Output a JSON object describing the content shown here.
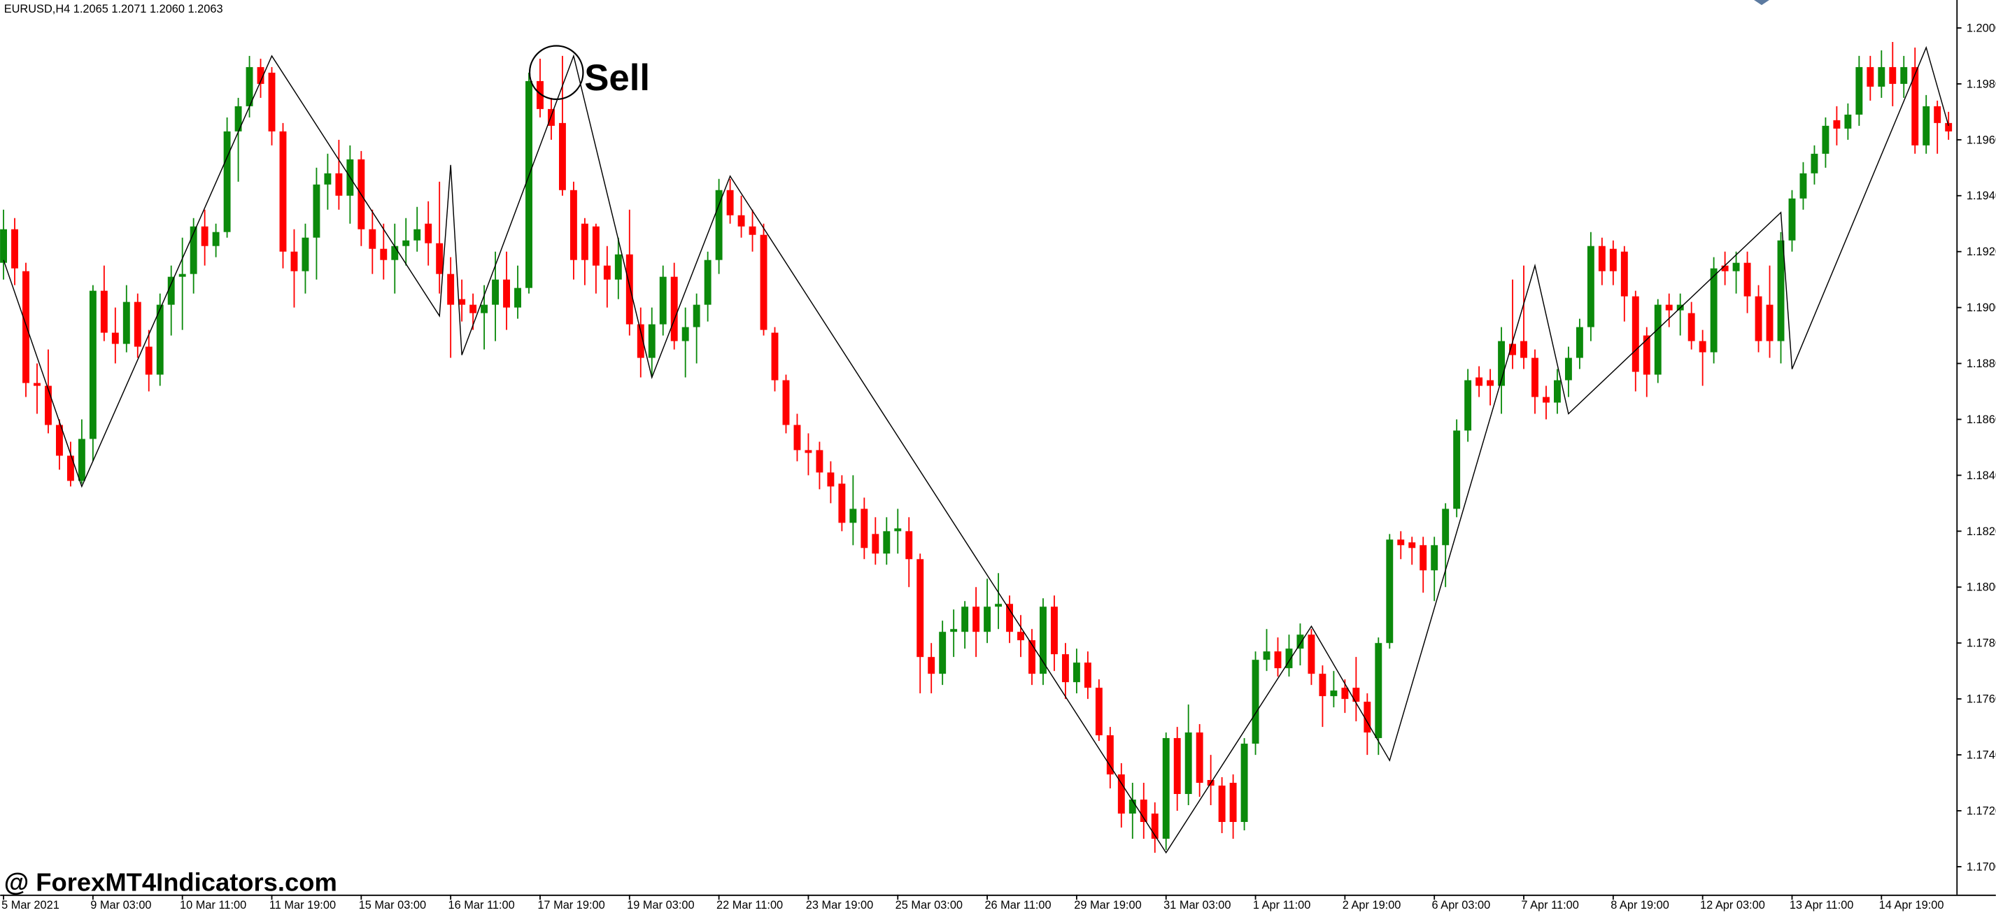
{
  "chart_data": {
    "type": "candlestick",
    "title": "EURUSD,H4  1.2065 1.2071 1.2060 1.2063",
    "annotation": "Sell",
    "watermark": "@ ForexMT4Indicators.com",
    "up_color": "#0b8a0b",
    "down_color": "#ff0000",
    "ylim": [
      1.169,
      1.201
    ],
    "yticks": [
      {
        "value": 1.17,
        "label": "1.1700"
      },
      {
        "value": 1.172,
        "label": "1.1720"
      },
      {
        "value": 1.174,
        "label": "1.1740"
      },
      {
        "value": 1.176,
        "label": "1.1760"
      },
      {
        "value": 1.178,
        "label": "1.1780"
      },
      {
        "value": 1.18,
        "label": "1.1800"
      },
      {
        "value": 1.182,
        "label": "1.1820"
      },
      {
        "value": 1.184,
        "label": "1.1840"
      },
      {
        "value": 1.186,
        "label": "1.1860"
      },
      {
        "value": 1.188,
        "label": "1.1880"
      },
      {
        "value": 1.19,
        "label": "1.1900"
      },
      {
        "value": 1.192,
        "label": "1.1920"
      },
      {
        "value": 1.194,
        "label": "1.1940"
      },
      {
        "value": 1.196,
        "label": "1.1960"
      },
      {
        "value": 1.198,
        "label": "1.1980"
      },
      {
        "value": 1.2,
        "label": "1.2000"
      }
    ],
    "categories": [
      "5 Mar 2021",
      null,
      null,
      null,
      null,
      null,
      null,
      null,
      "9 Mar 03:00",
      null,
      null,
      null,
      null,
      null,
      null,
      null,
      "10 Mar 11:00",
      null,
      null,
      null,
      null,
      null,
      null,
      null,
      "11 Mar 19:00",
      null,
      null,
      null,
      null,
      null,
      null,
      null,
      "15 Mar 03:00",
      null,
      null,
      null,
      null,
      null,
      null,
      null,
      "16 Mar 11:00",
      null,
      null,
      null,
      null,
      null,
      null,
      null,
      "17 Mar 19:00",
      null,
      null,
      null,
      null,
      null,
      null,
      null,
      "19 Mar 03:00",
      null,
      null,
      null,
      null,
      null,
      null,
      null,
      "22 Mar 11:00",
      null,
      null,
      null,
      null,
      null,
      null,
      null,
      "23 Mar 19:00",
      null,
      null,
      null,
      null,
      null,
      null,
      null,
      "25 Mar 03:00",
      null,
      null,
      null,
      null,
      null,
      null,
      null,
      "26 Mar 11:00",
      null,
      null,
      null,
      null,
      null,
      null,
      null,
      "29 Mar 19:00",
      null,
      null,
      null,
      null,
      null,
      null,
      null,
      "31 Mar 03:00",
      null,
      null,
      null,
      null,
      null,
      null,
      null,
      "1 Apr 11:00",
      null,
      null,
      null,
      null,
      null,
      null,
      null,
      "2 Apr 19:00",
      null,
      null,
      null,
      null,
      null,
      null,
      null,
      "6 Apr 03:00",
      null,
      null,
      null,
      null,
      null,
      null,
      null,
      "7 Apr 11:00",
      null,
      null,
      null,
      null,
      null,
      null,
      null,
      "8 Apr 19:00",
      null,
      null,
      null,
      null,
      null,
      null,
      null,
      "12 Apr 03:00",
      null,
      null,
      null,
      null,
      null,
      null,
      null,
      "13 Apr 11:00",
      null,
      null,
      null,
      null,
      null,
      null,
      null,
      "14 Apr 19:00",
      null,
      null,
      null,
      null,
      null,
      null
    ],
    "open": [
      1.1916,
      1.1928,
      1.1913,
      1.1873,
      1.1872,
      1.1858,
      1.1847,
      1.1838,
      1.1853,
      1.1906,
      1.1891,
      1.1887,
      1.1902,
      1.1886,
      1.1876,
      1.1901,
      1.1911,
      1.1912,
      1.1929,
      1.1922,
      1.1927,
      1.1963,
      1.1972,
      1.1986,
      1.1984,
      1.1963,
      1.192,
      1.1913,
      1.1925,
      1.1944,
      1.1948,
      1.194,
      1.1953,
      1.1928,
      1.1921,
      1.1917,
      1.1922,
      1.1924,
      1.193,
      1.1923,
      1.1912,
      1.1903,
      1.1901,
      1.1898,
      1.1901,
      1.191,
      1.19,
      1.1907,
      1.1981,
      1.1971,
      1.1966,
      1.1942,
      1.193,
      1.1929,
      1.1915,
      1.191,
      1.1919,
      1.1894,
      1.1882,
      1.1894,
      1.1911,
      1.1888,
      1.1893,
      1.1901,
      1.1917,
      1.1942,
      1.1933,
      1.1929,
      1.1926,
      1.1891,
      1.1874,
      1.1858,
      1.1849,
      1.1849,
      1.1841,
      1.1837,
      1.1823,
      1.1828,
      1.1819,
      1.1812,
      1.182,
      1.182,
      1.181,
      1.1775,
      1.1769,
      1.1784,
      1.1784,
      1.1793,
      1.1784,
      1.1793,
      1.1794,
      1.1784,
      1.1781,
      1.1769,
      1.1793,
      1.1776,
      1.1766,
      1.1773,
      1.1764,
      1.1747,
      1.1733,
      1.1719,
      1.1724,
      1.1719,
      1.171,
      1.1746,
      1.1726,
      1.1748,
      1.1731,
      1.1729,
      1.173,
      1.1716,
      1.1744,
      1.1774,
      1.1777,
      1.1771,
      1.1778,
      1.1783,
      1.1769,
      1.1761,
      1.1764,
      1.1764,
      1.1759,
      1.1746,
      1.178,
      1.1817,
      1.1816,
      1.1815,
      1.1806,
      1.1815,
      1.1828,
      1.1856,
      1.1875,
      1.1874,
      1.1872,
      1.1887,
      1.1888,
      1.1882,
      1.1868,
      1.1866,
      1.1874,
      1.1882,
      1.1893,
      1.1922,
      1.1921,
      1.192,
      1.1904,
      1.189,
      1.1876,
      1.1901,
      1.1899,
      1.1898,
      1.1888,
      1.1884,
      1.1915,
      1.1913,
      1.1916,
      1.1904,
      1.1901,
      1.1888,
      1.1924,
      1.1939,
      1.1948,
      1.1955,
      1.1967,
      1.1964,
      1.1969,
      1.1986,
      1.1979,
      1.1986,
      1.198,
      1.1986,
      1.1958,
      1.1972,
      1.1966
    ],
    "high": [
      1.1935,
      1.1932,
      1.1916,
      1.188,
      1.1885,
      1.186,
      1.1852,
      1.186,
      1.1908,
      1.1915,
      1.19,
      1.1908,
      1.1905,
      1.1892,
      1.1905,
      1.1915,
      1.1925,
      1.1932,
      1.1935,
      1.193,
      1.1968,
      1.1975,
      1.199,
      1.1989,
      1.1986,
      1.1966,
      1.1928,
      1.193,
      1.195,
      1.1955,
      1.196,
      1.1958,
      1.1956,
      1.1935,
      1.193,
      1.193,
      1.1932,
      1.1936,
      1.1938,
      1.1945,
      1.1918,
      1.191,
      1.1905,
      1.1908,
      1.192,
      1.192,
      1.1915,
      1.1984,
      1.1989,
      1.1975,
      1.199,
      1.1945,
      1.1932,
      1.193,
      1.1922,
      1.1925,
      1.1935,
      1.19,
      1.19,
      1.1915,
      1.1916,
      1.19,
      1.1905,
      1.192,
      1.1946,
      1.1946,
      1.194,
      1.1935,
      1.193,
      1.1893,
      1.1876,
      1.1862,
      1.1855,
      1.1852,
      1.1845,
      1.184,
      1.184,
      1.1832,
      1.1825,
      1.1825,
      1.1828,
      1.1825,
      1.1812,
      1.178,
      1.1788,
      1.1792,
      1.1795,
      1.18,
      1.1803,
      1.1805,
      1.1797,
      1.179,
      1.1785,
      1.1796,
      1.1797,
      1.178,
      1.1778,
      1.1777,
      1.1767,
      1.175,
      1.1737,
      1.173,
      1.173,
      1.1723,
      1.1748,
      1.175,
      1.1758,
      1.1751,
      1.174,
      1.1732,
      1.1733,
      1.1746,
      1.1777,
      1.1785,
      1.1782,
      1.1783,
      1.1787,
      1.1785,
      1.1772,
      1.177,
      1.1767,
      1.1775,
      1.1762,
      1.1782,
      1.1819,
      1.182,
      1.1818,
      1.1818,
      1.1818,
      1.183,
      1.186,
      1.1878,
      1.1879,
      1.1878,
      1.1893,
      1.191,
      1.1915,
      1.1885,
      1.1872,
      1.1878,
      1.1886,
      1.1896,
      1.1927,
      1.1925,
      1.1924,
      1.1922,
      1.1906,
      1.1893,
      1.1903,
      1.1905,
      1.1905,
      1.1902,
      1.1892,
      1.1918,
      1.192,
      1.192,
      1.192,
      1.1908,
      1.1915,
      1.1927,
      1.1942,
      1.1952,
      1.1958,
      1.1968,
      1.1972,
      1.1973,
      1.199,
      1.199,
      1.1992,
      1.1995,
      1.199,
      1.1993,
      1.1976,
      1.1974,
      1.197
    ],
    "low": [
      1.191,
      1.1908,
      1.1868,
      1.1862,
      1.1855,
      1.1842,
      1.1836,
      1.1837,
      1.1845,
      1.1888,
      1.188,
      1.1884,
      1.1882,
      1.187,
      1.1872,
      1.189,
      1.1892,
      1.1905,
      1.1915,
      1.1918,
      1.1925,
      1.1945,
      1.1968,
      1.1975,
      1.1958,
      1.1914,
      1.19,
      1.1905,
      1.191,
      1.1935,
      1.1935,
      1.193,
      1.1922,
      1.1912,
      1.191,
      1.1905,
      1.1915,
      1.192,
      1.1915,
      1.1905,
      1.1882,
      1.1895,
      1.1892,
      1.1885,
      1.1888,
      1.1892,
      1.1896,
      1.1905,
      1.1968,
      1.196,
      1.194,
      1.191,
      1.1908,
      1.1905,
      1.19,
      1.1903,
      1.189,
      1.1875,
      1.1875,
      1.189,
      1.1885,
      1.1875,
      1.188,
      1.1895,
      1.1912,
      1.193,
      1.1925,
      1.192,
      1.189,
      1.187,
      1.1855,
      1.1845,
      1.184,
      1.1835,
      1.183,
      1.182,
      1.1815,
      1.181,
      1.1808,
      1.1808,
      1.1812,
      1.18,
      1.1762,
      1.1762,
      1.1765,
      1.1775,
      1.1778,
      1.1775,
      1.178,
      1.1785,
      1.178,
      1.1775,
      1.1765,
      1.1765,
      1.177,
      1.176,
      1.1762,
      1.176,
      1.1745,
      1.1728,
      1.1714,
      1.171,
      1.171,
      1.1705,
      1.1706,
      1.172,
      1.1722,
      1.1725,
      1.1722,
      1.1712,
      1.171,
      1.1713,
      1.174,
      1.177,
      1.1768,
      1.1768,
      1.1772,
      1.1765,
      1.175,
      1.1757,
      1.1755,
      1.1752,
      1.174,
      1.174,
      1.1778,
      1.181,
      1.1808,
      1.1798,
      1.1795,
      1.18,
      1.1825,
      1.1852,
      1.1868,
      1.1865,
      1.1862,
      1.1878,
      1.1878,
      1.1862,
      1.186,
      1.1862,
      1.1868,
      1.1878,
      1.1888,
      1.1908,
      1.1908,
      1.1895,
      1.187,
      1.1868,
      1.1873,
      1.1893,
      1.189,
      1.1885,
      1.1872,
      1.188,
      1.1908,
      1.1905,
      1.1898,
      1.1884,
      1.1882,
      1.188,
      1.192,
      1.1935,
      1.1944,
      1.195,
      1.1958,
      1.196,
      1.1965,
      1.1974,
      1.1975,
      1.1972,
      1.1975,
      1.1955,
      1.1955,
      1.1955,
      1.196
    ],
    "close": [
      1.1928,
      1.1914,
      1.1873,
      1.1872,
      1.1858,
      1.1847,
      1.1838,
      1.1853,
      1.1906,
      1.1891,
      1.1887,
      1.1902,
      1.1886,
      1.1876,
      1.1901,
      1.1911,
      1.1912,
      1.1929,
      1.1922,
      1.1927,
      1.1963,
      1.1972,
      1.1986,
      1.198,
      1.1963,
      1.192,
      1.1913,
      1.1925,
      1.1944,
      1.1948,
      1.194,
      1.1953,
      1.1928,
      1.1921,
      1.1917,
      1.1922,
      1.1924,
      1.1928,
      1.1923,
      1.1912,
      1.1901,
      1.1901,
      1.1898,
      1.1901,
      1.191,
      1.19,
      1.1907,
      1.1981,
      1.1971,
      1.1965,
      1.1942,
      1.1917,
      1.1917,
      1.1915,
      1.191,
      1.1919,
      1.1894,
      1.1882,
      1.1894,
      1.1911,
      1.1888,
      1.1893,
      1.1901,
      1.1917,
      1.1942,
      1.1933,
      1.1929,
      1.1926,
      1.1892,
      1.1874,
      1.1858,
      1.1849,
      1.1848,
      1.1841,
      1.1836,
      1.1823,
      1.1828,
      1.1814,
      1.1812,
      1.182,
      1.1821,
      1.181,
      1.1775,
      1.1769,
      1.1784,
      1.1785,
      1.1793,
      1.1784,
      1.1793,
      1.1794,
      1.1784,
      1.1781,
      1.1769,
      1.1793,
      1.1776,
      1.1766,
      1.1773,
      1.1764,
      1.1747,
      1.1733,
      1.1719,
      1.1724,
      1.1716,
      1.171,
      1.1746,
      1.1726,
      1.1748,
      1.173,
      1.1729,
      1.1716,
      1.1716,
      1.1744,
      1.1774,
      1.1777,
      1.1771,
      1.1778,
      1.1783,
      1.1769,
      1.1761,
      1.1763,
      1.176,
      1.1759,
      1.1748,
      1.178,
      1.1817,
      1.1815,
      1.1814,
      1.1806,
      1.1815,
      1.1828,
      1.1856,
      1.1874,
      1.1872,
      1.1872,
      1.1888,
      1.1883,
      1.1882,
      1.1868,
      1.1866,
      1.1874,
      1.1882,
      1.1893,
      1.1922,
      1.1913,
      1.1913,
      1.1904,
      1.1877,
      1.1876,
      1.1901,
      1.1899,
      1.1901,
      1.1888,
      1.1884,
      1.1914,
      1.1913,
      1.1916,
      1.1904,
      1.1888,
      1.1888,
      1.1924,
      1.1939,
      1.1948,
      1.1955,
      1.1965,
      1.1964,
      1.1969,
      1.1986,
      1.1979,
      1.1986,
      1.198,
      1.1986,
      1.1958,
      1.1972,
      1.1966,
      1.1963
    ],
    "zigzag": {
      "color": "#000000",
      "x": [
        0,
        7,
        24,
        39,
        40,
        41,
        51,
        58,
        65,
        104,
        117,
        124,
        137,
        140,
        159,
        160,
        172,
        174
      ],
      "values": [
        1.1917,
        1.1836,
        1.199,
        1.1897,
        1.1951,
        1.1883,
        1.199,
        1.1875,
        1.1947,
        1.1705,
        1.1786,
        1.1738,
        1.1915,
        1.1862,
        1.1934,
        1.1878,
        1.1993,
        1.1965
      ]
    }
  }
}
